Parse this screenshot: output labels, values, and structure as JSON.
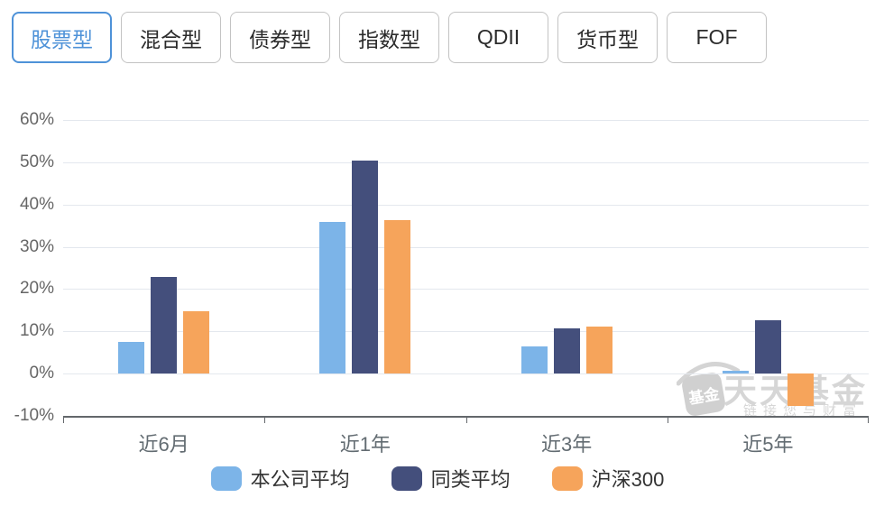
{
  "tabs": {
    "active": "股票型",
    "items": [
      {
        "label": "股票型",
        "name": "tab-equity"
      },
      {
        "label": "混合型",
        "name": "tab-hybrid"
      },
      {
        "label": "债券型",
        "name": "tab-bond"
      },
      {
        "label": "指数型",
        "name": "tab-index"
      },
      {
        "label": "QDII",
        "name": "tab-qdii"
      },
      {
        "label": "货币型",
        "name": "tab-money"
      },
      {
        "label": "FOF",
        "name": "tab-fof"
      }
    ]
  },
  "chart_data": {
    "type": "bar",
    "title": "",
    "categories": [
      "近6月",
      "近1年",
      "近3年",
      "近5年"
    ],
    "series": [
      {
        "name": "本公司平均",
        "key": "company-avg",
        "color": "#7cb4e8",
        "values": [
          7.5,
          35.8,
          6.4,
          0.6
        ]
      },
      {
        "name": "同类平均",
        "key": "peer-avg",
        "color": "#444f7c",
        "values": [
          22.8,
          50.5,
          10.8,
          12.7
        ]
      },
      {
        "name": "沪深300",
        "key": "hs300",
        "color": "#f6a45b",
        "values": [
          14.7,
          36.3,
          11.2,
          -7.7
        ]
      }
    ],
    "ylim": [
      -10,
      60
    ],
    "yticks": [
      "60%",
      "50%",
      "40%",
      "30%",
      "20%",
      "10%",
      "0%",
      "-10%"
    ],
    "xlabel": "",
    "ylabel": "",
    "grid": true,
    "legend_position": "bottom"
  },
  "colors": {
    "tab_active": "#4e92d8",
    "tab_border": "#c3c3c3",
    "gridline": "#e4e8ee",
    "axis": "#63676b"
  },
  "watermark": {
    "logo_text": "基金",
    "title": "天天基金",
    "subtitle": "链接您与财富"
  }
}
